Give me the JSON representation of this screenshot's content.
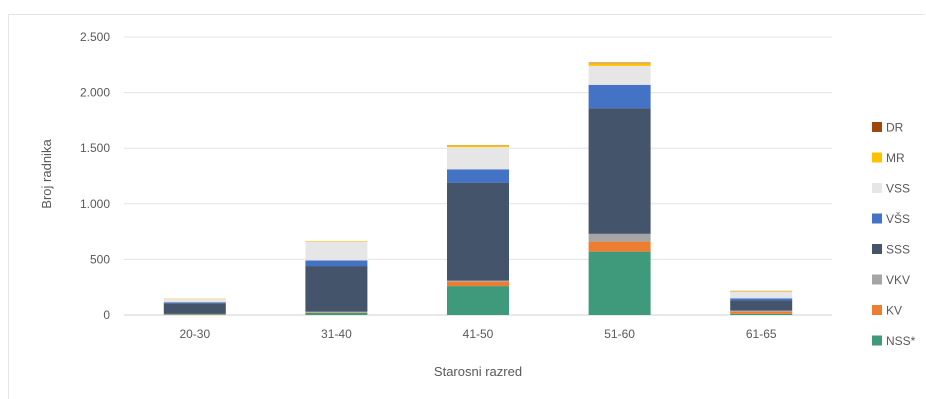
{
  "chart_data": {
    "type": "bar",
    "stacked": true,
    "xlabel": "Starosni razred",
    "ylabel": "Broj radnika",
    "ylim": [
      0,
      2500
    ],
    "yticks": [
      0,
      500,
      1000,
      1500,
      2000,
      2500
    ],
    "ytick_labels": [
      "0",
      "500",
      "1.000",
      "1.500",
      "2.000",
      "2.500"
    ],
    "grid": true,
    "legend_position": "right",
    "categories": [
      "20-30",
      "31-40",
      "41-50",
      "51-60",
      "61-65"
    ],
    "series": [
      {
        "name": "NSS*",
        "color": "#3f9a7b",
        "values": [
          5,
          20,
          260,
          570,
          10
        ]
      },
      {
        "name": "KV",
        "color": "#ed7d31",
        "values": [
          3,
          5,
          40,
          90,
          20
        ]
      },
      {
        "name": "VKV",
        "color": "#a5a5a5",
        "values": [
          2,
          5,
          10,
          70,
          10
        ]
      },
      {
        "name": "SSS",
        "color": "#44546a",
        "values": [
          95,
          410,
          880,
          1130,
          90
        ]
      },
      {
        "name": "VŠS",
        "color": "#4472c4",
        "values": [
          10,
          50,
          120,
          210,
          20
        ]
      },
      {
        "name": "VSS",
        "color": "#e7e6e6",
        "values": [
          30,
          170,
          200,
          170,
          60
        ]
      },
      {
        "name": "MR",
        "color": "#ffc000",
        "values": [
          3,
          5,
          15,
          25,
          5
        ]
      },
      {
        "name": "DR",
        "color": "#9e480e",
        "values": [
          0,
          0,
          2,
          5,
          2
        ]
      }
    ]
  }
}
